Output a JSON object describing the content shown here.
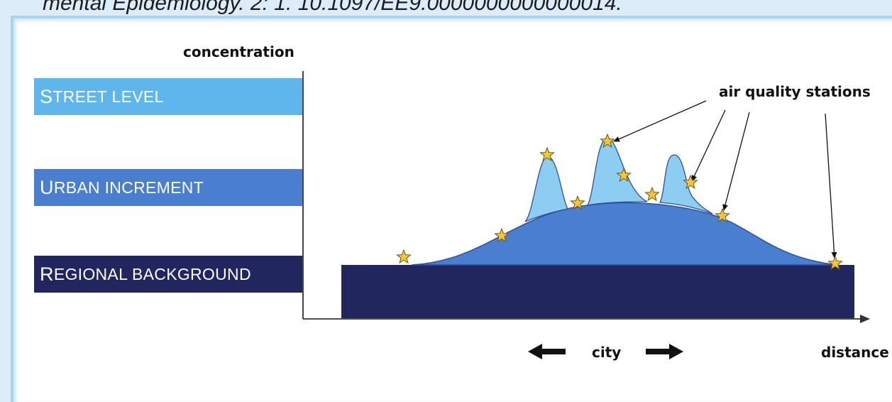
{
  "caption": "mental Epidemiology. 2: 1. 10.1097/EE9.0000000000000014.",
  "y_axis_label": "concentration",
  "x_axis_label": "distance",
  "city_label": "city",
  "stations_label": "air quality stations",
  "bands": [
    {
      "first_big": "S",
      "rest": "TREET LEVEL",
      "color": "#5fb6ec"
    },
    {
      "first_big": "U",
      "rest": "RBAN INCREMENT",
      "color": "#4a7fd0"
    },
    {
      "first_big": "R",
      "rest": "EGIONAL BACKGROUND",
      "color": "#22265f"
    }
  ],
  "colors": {
    "regional": "#22265f",
    "urban": "#4a7fd0",
    "street": "#5fb6ec",
    "star": "#f3c53a"
  }
}
